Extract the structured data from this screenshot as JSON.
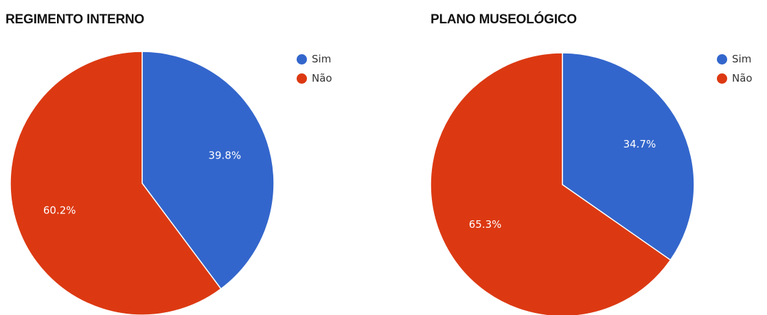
{
  "chart_data": [
    {
      "type": "pie",
      "title": "REGIMENTO INTERNO",
      "categories": [
        "Sim",
        "Não"
      ],
      "values": [
        39.8,
        60.2
      ],
      "value_labels": [
        "39.8%",
        "60.2%"
      ],
      "colors": [
        "#3366cc",
        "#dc3912"
      ],
      "legend_position": "right",
      "start_angle_deg": 0,
      "direction": "clockwise"
    },
    {
      "type": "pie",
      "title": "PLANO MUSEOLÓGICO",
      "categories": [
        "Sim",
        "Não"
      ],
      "values": [
        34.7,
        65.3
      ],
      "value_labels": [
        "34.7%",
        "65.3%"
      ],
      "colors": [
        "#3366cc",
        "#dc3912"
      ],
      "legend_position": "right",
      "start_angle_deg": 0,
      "direction": "clockwise"
    }
  ]
}
